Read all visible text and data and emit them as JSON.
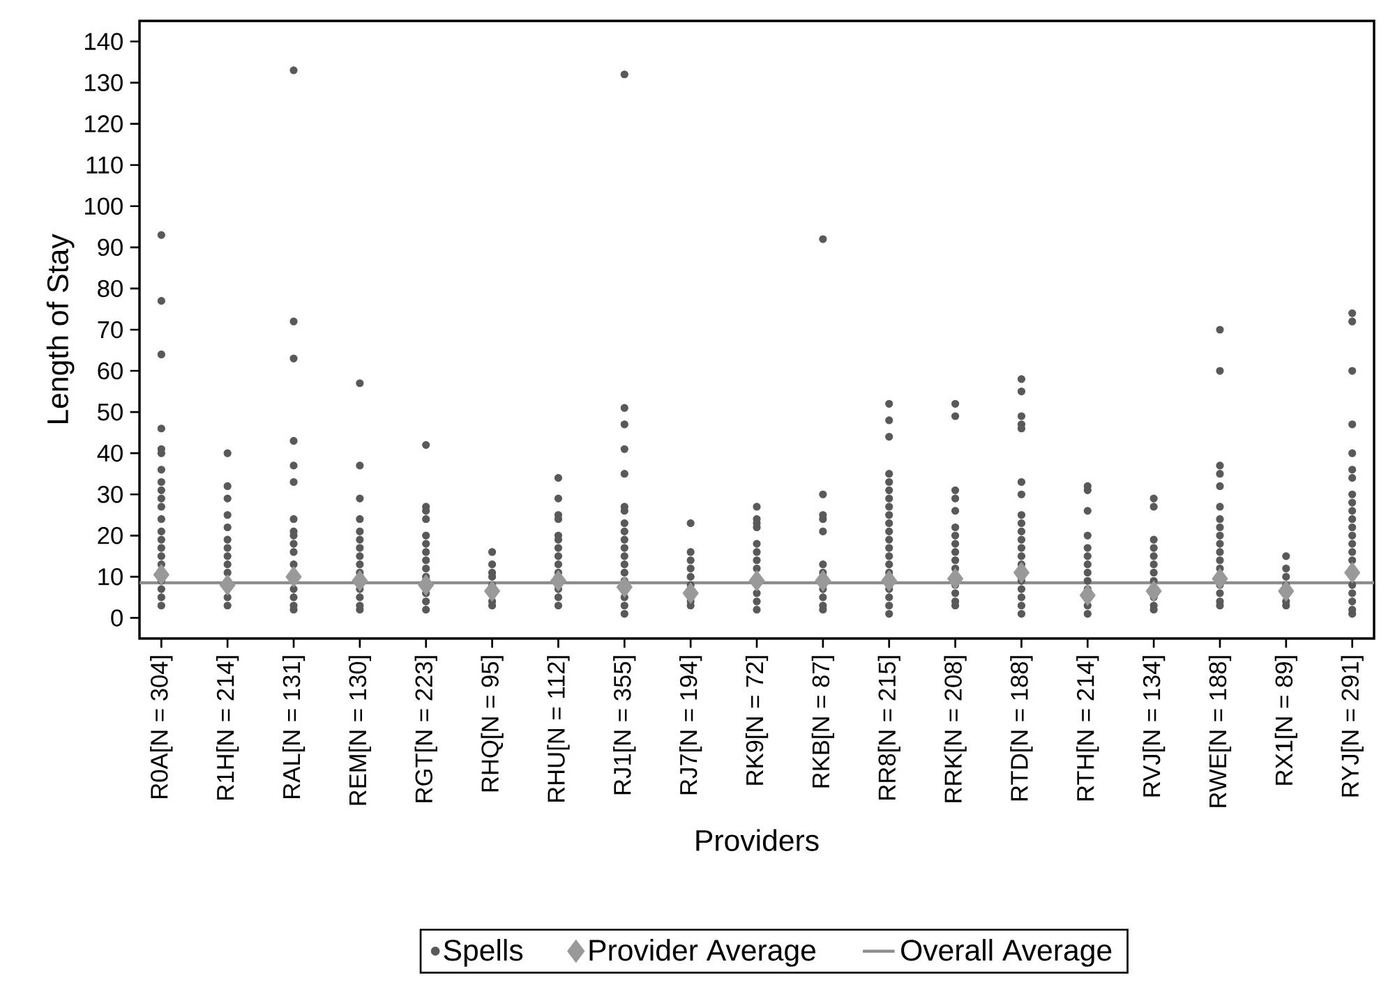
{
  "chart_data": {
    "type": "scatter",
    "xlabel": "Providers",
    "ylabel": "Length of Stay",
    "categories": [
      "R0A[N = 304]",
      "R1H[N = 214]",
      "RAL[N = 131]",
      "REM[N = 130]",
      "RGT[N = 223]",
      "RHQ[N = 95]",
      "RHU[N = 112]",
      "RJ1[N = 355]",
      "RJ7[N = 194]",
      "RK9[N = 72]",
      "RKB[N = 87]",
      "RR8[N = 215]",
      "RRK[N = 208]",
      "RTD[N = 188]",
      "RTH[N = 214]",
      "RVJ[N = 134]",
      "RWE[N = 188]",
      "RX1[N = 89]",
      "RYJ[N = 291]"
    ],
    "series": [
      {
        "name": "Spells",
        "marker": "circle",
        "color": "#595959",
        "x": [
          "R0A[N = 304]",
          "R0A[N = 304]",
          "R0A[N = 304]",
          "R0A[N = 304]",
          "R0A[N = 304]",
          "R0A[N = 304]",
          "R0A[N = 304]",
          "R0A[N = 304]",
          "R0A[N = 304]",
          "R0A[N = 304]",
          "R0A[N = 304]",
          "R0A[N = 304]",
          "R0A[N = 304]",
          "R0A[N = 304]",
          "R0A[N = 304]",
          "R0A[N = 304]",
          "R0A[N = 304]",
          "R0A[N = 304]",
          "R0A[N = 304]",
          "R0A[N = 304]",
          "R0A[N = 304]",
          "R1H[N = 214]",
          "R1H[N = 214]",
          "R1H[N = 214]",
          "R1H[N = 214]",
          "R1H[N = 214]",
          "R1H[N = 214]",
          "R1H[N = 214]",
          "R1H[N = 214]",
          "R1H[N = 214]",
          "R1H[N = 214]",
          "R1H[N = 214]",
          "R1H[N = 214]",
          "RAL[N = 131]",
          "RAL[N = 131]",
          "RAL[N = 131]",
          "RAL[N = 131]",
          "RAL[N = 131]",
          "RAL[N = 131]",
          "RAL[N = 131]",
          "RAL[N = 131]",
          "RAL[N = 131]",
          "RAL[N = 131]",
          "RAL[N = 131]",
          "RAL[N = 131]",
          "RAL[N = 131]",
          "RAL[N = 131]",
          "RAL[N = 131]",
          "RAL[N = 131]",
          "REM[N = 130]",
          "REM[N = 130]",
          "REM[N = 130]",
          "REM[N = 130]",
          "REM[N = 130]",
          "REM[N = 130]",
          "REM[N = 130]",
          "REM[N = 130]",
          "REM[N = 130]",
          "REM[N = 130]",
          "REM[N = 130]",
          "REM[N = 130]",
          "REM[N = 130]",
          "REM[N = 130]",
          "RGT[N = 223]",
          "RGT[N = 223]",
          "RGT[N = 223]",
          "RGT[N = 223]",
          "RGT[N = 223]",
          "RGT[N = 223]",
          "RGT[N = 223]",
          "RGT[N = 223]",
          "RGT[N = 223]",
          "RGT[N = 223]",
          "RGT[N = 223]",
          "RGT[N = 223]",
          "RGT[N = 223]",
          "RHQ[N = 95]",
          "RHQ[N = 95]",
          "RHQ[N = 95]",
          "RHQ[N = 95]",
          "RHQ[N = 95]",
          "RHQ[N = 95]",
          "RHQ[N = 95]",
          "RHU[N = 112]",
          "RHU[N = 112]",
          "RHU[N = 112]",
          "RHU[N = 112]",
          "RHU[N = 112]",
          "RHU[N = 112]",
          "RHU[N = 112]",
          "RHU[N = 112]",
          "RHU[N = 112]",
          "RHU[N = 112]",
          "RHU[N = 112]",
          "RHU[N = 112]",
          "RHU[N = 112]",
          "RJ1[N = 355]",
          "RJ1[N = 355]",
          "RJ1[N = 355]",
          "RJ1[N = 355]",
          "RJ1[N = 355]",
          "RJ1[N = 355]",
          "RJ1[N = 355]",
          "RJ1[N = 355]",
          "RJ1[N = 355]",
          "RJ1[N = 355]",
          "RJ1[N = 355]",
          "RJ1[N = 355]",
          "RJ1[N = 355]",
          "RJ1[N = 355]",
          "RJ1[N = 355]",
          "RJ1[N = 355]",
          "RJ1[N = 355]",
          "RJ1[N = 355]",
          "RJ7[N = 194]",
          "RJ7[N = 194]",
          "RJ7[N = 194]",
          "RJ7[N = 194]",
          "RJ7[N = 194]",
          "RJ7[N = 194]",
          "RJ7[N = 194]",
          "RJ7[N = 194]",
          "RK9[N = 72]",
          "RK9[N = 72]",
          "RK9[N = 72]",
          "RK9[N = 72]",
          "RK9[N = 72]",
          "RK9[N = 72]",
          "RK9[N = 72]",
          "RK9[N = 72]",
          "RK9[N = 72]",
          "RK9[N = 72]",
          "RK9[N = 72]",
          "RKB[N = 87]",
          "RKB[N = 87]",
          "RKB[N = 87]",
          "RKB[N = 87]",
          "RKB[N = 87]",
          "RKB[N = 87]",
          "RKB[N = 87]",
          "RKB[N = 87]",
          "RKB[N = 87]",
          "RKB[N = 87]",
          "RKB[N = 87]",
          "RR8[N = 215]",
          "RR8[N = 215]",
          "RR8[N = 215]",
          "RR8[N = 215]",
          "RR8[N = 215]",
          "RR8[N = 215]",
          "RR8[N = 215]",
          "RR8[N = 215]",
          "RR8[N = 215]",
          "RR8[N = 215]",
          "RR8[N = 215]",
          "RR8[N = 215]",
          "RR8[N = 215]",
          "RR8[N = 215]",
          "RR8[N = 215]",
          "RR8[N = 215]",
          "RR8[N = 215]",
          "RR8[N = 215]",
          "RR8[N = 215]",
          "RR8[N = 215]",
          "RRK[N = 208]",
          "RRK[N = 208]",
          "RRK[N = 208]",
          "RRK[N = 208]",
          "RRK[N = 208]",
          "RRK[N = 208]",
          "RRK[N = 208]",
          "RRK[N = 208]",
          "RRK[N = 208]",
          "RRK[N = 208]",
          "RRK[N = 208]",
          "RRK[N = 208]",
          "RRK[N = 208]",
          "RRK[N = 208]",
          "RRK[N = 208]",
          "RTD[N = 188]",
          "RTD[N = 188]",
          "RTD[N = 188]",
          "RTD[N = 188]",
          "RTD[N = 188]",
          "RTD[N = 188]",
          "RTD[N = 188]",
          "RTD[N = 188]",
          "RTD[N = 188]",
          "RTD[N = 188]",
          "RTD[N = 188]",
          "RTD[N = 188]",
          "RTD[N = 188]",
          "RTD[N = 188]",
          "RTD[N = 188]",
          "RTD[N = 188]",
          "RTD[N = 188]",
          "RTD[N = 188]",
          "RTD[N = 188]",
          "RTH[N = 214]",
          "RTH[N = 214]",
          "RTH[N = 214]",
          "RTH[N = 214]",
          "RTH[N = 214]",
          "RTH[N = 214]",
          "RTH[N = 214]",
          "RTH[N = 214]",
          "RTH[N = 214]",
          "RTH[N = 214]",
          "RTH[N = 214]",
          "RTH[N = 214]",
          "RVJ[N = 134]",
          "RVJ[N = 134]",
          "RVJ[N = 134]",
          "RVJ[N = 134]",
          "RVJ[N = 134]",
          "RVJ[N = 134]",
          "RVJ[N = 134]",
          "RVJ[N = 134]",
          "RVJ[N = 134]",
          "RVJ[N = 134]",
          "RVJ[N = 134]",
          "RWE[N = 188]",
          "RWE[N = 188]",
          "RWE[N = 188]",
          "RWE[N = 188]",
          "RWE[N = 188]",
          "RWE[N = 188]",
          "RWE[N = 188]",
          "RWE[N = 188]",
          "RWE[N = 188]",
          "RWE[N = 188]",
          "RWE[N = 188]",
          "RWE[N = 188]",
          "RWE[N = 188]",
          "RWE[N = 188]",
          "RWE[N = 188]",
          "RWE[N = 188]",
          "RWE[N = 188]",
          "RX1[N = 89]",
          "RX1[N = 89]",
          "RX1[N = 89]",
          "RX1[N = 89]",
          "RX1[N = 89]",
          "RX1[N = 89]",
          "RYJ[N = 291]",
          "RYJ[N = 291]",
          "RYJ[N = 291]",
          "RYJ[N = 291]",
          "RYJ[N = 291]",
          "RYJ[N = 291]",
          "RYJ[N = 291]",
          "RYJ[N = 291]",
          "RYJ[N = 291]",
          "RYJ[N = 291]",
          "RYJ[N = 291]",
          "RYJ[N = 291]",
          "RYJ[N = 291]",
          "RYJ[N = 291]",
          "RYJ[N = 291]",
          "RYJ[N = 291]",
          "RYJ[N = 291]",
          "RYJ[N = 291]",
          "RYJ[N = 291]",
          "RYJ[N = 291]",
          "RYJ[N = 291]",
          "RYJ[N = 291]"
        ],
        "values": [
          93,
          77,
          64,
          46,
          41,
          40,
          36,
          33,
          31,
          29,
          27,
          24,
          21,
          19,
          17,
          15,
          13,
          9,
          7,
          5,
          3,
          40,
          32,
          29,
          25,
          22,
          19,
          17,
          15,
          13,
          11,
          5,
          3,
          133,
          72,
          63,
          43,
          37,
          33,
          24,
          21,
          20,
          18,
          16,
          13,
          7,
          5,
          3,
          2,
          57,
          37,
          29,
          24,
          21,
          19,
          17,
          15,
          13,
          11,
          7,
          5,
          3,
          2,
          42,
          27,
          26,
          24,
          20,
          18,
          16,
          14,
          12,
          10,
          6,
          4,
          2,
          16,
          13,
          11,
          10,
          8,
          4,
          3,
          34,
          29,
          25,
          24,
          20,
          19,
          17,
          15,
          13,
          11,
          7,
          5,
          3,
          132,
          51,
          47,
          41,
          35,
          27,
          26,
          23,
          21,
          19,
          17,
          15,
          13,
          11,
          9,
          5,
          3,
          1,
          23,
          16,
          14,
          12,
          10,
          8,
          4,
          3,
          27,
          24,
          23,
          22,
          18,
          16,
          14,
          12,
          6,
          4,
          2,
          92,
          30,
          25,
          24,
          21,
          13,
          11,
          7,
          5,
          3,
          2,
          52,
          48,
          44,
          35,
          33,
          31,
          29,
          27,
          25,
          23,
          21,
          19,
          17,
          15,
          13,
          11,
          7,
          5,
          3,
          1,
          52,
          49,
          31,
          29,
          26,
          22,
          20,
          18,
          16,
          14,
          12,
          8,
          6,
          4,
          3,
          58,
          55,
          49,
          47,
          46,
          33,
          30,
          25,
          23,
          21,
          19,
          17,
          15,
          13,
          9,
          7,
          5,
          3,
          1,
          32,
          31,
          26,
          20,
          17,
          15,
          13,
          11,
          9,
          7,
          3,
          1,
          29,
          27,
          19,
          17,
          15,
          13,
          11,
          9,
          5,
          3,
          2,
          70,
          60,
          37,
          35,
          32,
          27,
          24,
          22,
          20,
          18,
          16,
          14,
          12,
          8,
          6,
          4,
          3,
          15,
          12,
          10,
          8,
          4,
          3,
          74,
          72,
          60,
          47,
          40,
          36,
          34,
          30,
          28,
          26,
          24,
          22,
          20,
          18,
          16,
          14,
          12,
          8,
          6,
          4,
          2,
          1
        ]
      },
      {
        "name": "Provider Average",
        "marker": "diamond",
        "color": "#999999",
        "values": [
          10.5,
          8,
          10,
          9,
          8,
          6.5,
          9,
          7.5,
          6,
          9,
          9,
          9,
          9.5,
          11,
          5.5,
          6.5,
          9.5,
          6.5,
          11
        ]
      }
    ],
    "ref_lines": [
      {
        "axis": "y",
        "value": 8.5,
        "label": "Overall Average",
        "color": "#8c8c8c",
        "line_style": "solid"
      }
    ],
    "ylim": [
      -5,
      145
    ],
    "yticks": [
      0,
      10,
      20,
      30,
      40,
      50,
      60,
      70,
      80,
      90,
      100,
      110,
      120,
      130,
      140
    ],
    "legend": "bottom"
  }
}
